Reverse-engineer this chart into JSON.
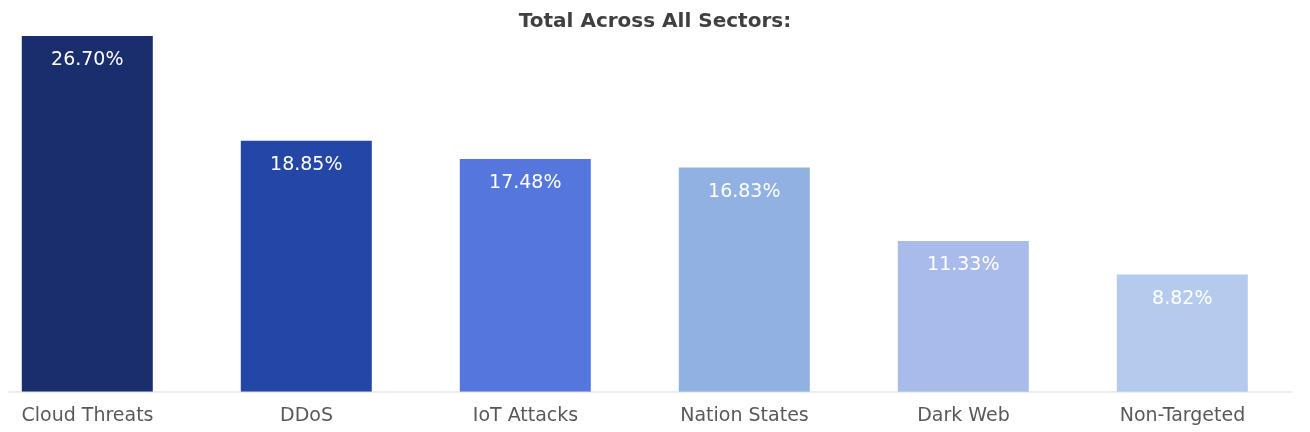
{
  "chart_data": {
    "type": "bar",
    "title": "Total Across All Sectors:",
    "categories": [
      "Cloud Threats",
      "DDoS",
      "IoT Attacks",
      "Nation States",
      "Dark Web",
      "Non-Targeted"
    ],
    "values": [
      26.7,
      18.85,
      17.48,
      16.83,
      11.33,
      8.82
    ],
    "value_labels": [
      "26.70%",
      "18.85%",
      "17.48%",
      "16.83%",
      "11.33%",
      "8.82%"
    ],
    "colors": [
      "#1a2e6e",
      "#2446a6",
      "#5577dd",
      "#91b1e3",
      "#a9bbea",
      "#b5cbed"
    ],
    "grid": false
  }
}
